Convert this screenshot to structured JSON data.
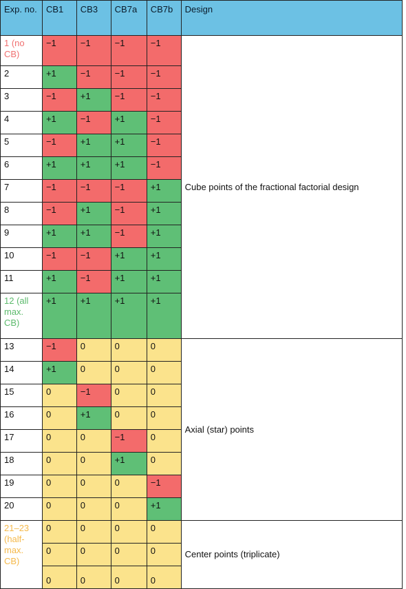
{
  "headers": [
    "Exp. no.",
    "CB1",
    "CB3",
    "CB7a",
    "CB7b",
    "Design"
  ],
  "rows": [
    {
      "exp": "1 (no CB)",
      "vals": [
        "−1",
        "−1",
        "−1",
        "−1"
      ],
      "h": 44
    },
    {
      "exp": "2",
      "vals": [
        "+1",
        "−1",
        "−1",
        "−1"
      ],
      "h": 33
    },
    {
      "exp": "3",
      "vals": [
        "−1",
        "+1",
        "−1",
        "−1"
      ],
      "h": 33
    },
    {
      "exp": "4",
      "vals": [
        "+1",
        "−1",
        "+1",
        "−1"
      ],
      "h": 33
    },
    {
      "exp": "5",
      "vals": [
        "−1",
        "+1",
        "+1",
        "−1"
      ],
      "h": 33
    },
    {
      "exp": "6",
      "vals": [
        "+1",
        "+1",
        "+1",
        "−1"
      ],
      "h": 33
    },
    {
      "exp": "7",
      "vals": [
        "−1",
        "−1",
        "−1",
        "+1"
      ],
      "h": 33
    },
    {
      "exp": "8",
      "vals": [
        "−1",
        "+1",
        "−1",
        "+1"
      ],
      "h": 33
    },
    {
      "exp": "9",
      "vals": [
        "+1",
        "+1",
        "−1",
        "+1"
      ],
      "h": 33
    },
    {
      "exp": "10",
      "vals": [
        "−1",
        "−1",
        "+1",
        "+1"
      ],
      "h": 33
    },
    {
      "exp": "11",
      "vals": [
        "+1",
        "−1",
        "+1",
        "+1"
      ],
      "h": 33
    },
    {
      "exp": "12 (all max. CB)",
      "vals": [
        "+1",
        "+1",
        "+1",
        "+1"
      ],
      "h": 66
    },
    {
      "exp": "13",
      "vals": [
        "−1",
        "0",
        "0",
        "0"
      ],
      "h": 33
    },
    {
      "exp": "14",
      "vals": [
        "+1",
        "0",
        "0",
        "0"
      ],
      "h": 33
    },
    {
      "exp": "15",
      "vals": [
        "0",
        "−1",
        "0",
        "0"
      ],
      "h": 33
    },
    {
      "exp": "16",
      "vals": [
        "0",
        "+1",
        "0",
        "0"
      ],
      "h": 33
    },
    {
      "exp": "17",
      "vals": [
        "0",
        "0",
        "−1",
        "0"
      ],
      "h": 33
    },
    {
      "exp": "18",
      "vals": [
        "0",
        "0",
        "+1",
        "0"
      ],
      "h": 33
    },
    {
      "exp": "19",
      "vals": [
        "0",
        "0",
        "0",
        "−1"
      ],
      "h": 33
    },
    {
      "exp": "20",
      "vals": [
        "0",
        "0",
        "0",
        "+1"
      ],
      "h": 33
    },
    {
      "exp": "",
      "vals": [
        "0",
        "0",
        "0",
        "0"
      ],
      "h": 33
    },
    {
      "exp": "",
      "vals": [
        "0",
        "0",
        "0",
        "0"
      ],
      "h": 33
    },
    {
      "exp": "",
      "vals": [
        "0",
        "0",
        "0",
        "0"
      ],
      "h": 33
    }
  ],
  "center_exp_label": "21–23 (half-max. CB)",
  "design_groups": [
    {
      "label": "Cube points of the fractional factorial design",
      "start": 0,
      "span": 12
    },
    {
      "label": "Axial (star) points",
      "start": 12,
      "span": 8
    },
    {
      "label": "Center points (triplicate)",
      "start": 20,
      "span": 3
    }
  ],
  "colors": {
    "neg": "#f36b6b",
    "pos": "#5fbf76",
    "zero": "#fbe38c",
    "header": "#6cc1e4"
  }
}
